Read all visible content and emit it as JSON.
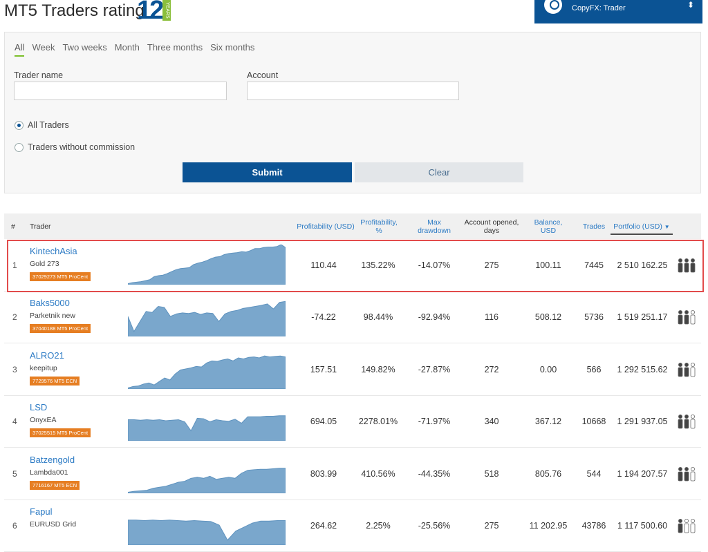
{
  "header": {
    "title": "MT5 Traders rating",
    "years_number": "12",
    "years_tag": "YEARS",
    "account_label": "CopyFX: Trader"
  },
  "filters": {
    "periods": [
      "All",
      "Week",
      "Two weeks",
      "Month",
      "Three months",
      "Six months"
    ],
    "active_period": "All",
    "trader_name_label": "Trader name",
    "trader_name_value": "",
    "account_label": "Account",
    "account_value": "",
    "radio_all": "All Traders",
    "radio_no_commission": "Traders without commission",
    "selected_radio": "All Traders",
    "submit": "Submit",
    "clear": "Clear"
  },
  "table": {
    "columns": {
      "rank": "#",
      "trader": "Trader",
      "profit_usd": "Profitability (USD)",
      "profit_pct_1": "Profitability,",
      "profit_pct_2": "%",
      "max_dd_1": "Max",
      "max_dd_2": "drawdown",
      "opened_1": "Account opened,",
      "opened_2": "days",
      "balance_1": "Balance,",
      "balance_2": "USD",
      "trades": "Trades",
      "portfolio": "Portfolio (USD)"
    },
    "rows": [
      {
        "rank": "1",
        "name": "KintechAsia",
        "strategy": "Gold 273",
        "badge": "37029273 MT5 ProCent",
        "profit_usd": "110.44",
        "profit_pct": "135.22%",
        "max_dd": "-14.07%",
        "opened": "275",
        "balance": "100.11",
        "trades": "7445",
        "portfolio": "2 510 162.25",
        "spark": [
          2,
          4,
          5,
          6,
          8,
          10,
          16,
          18,
          19,
          22,
          26,
          30,
          32,
          33,
          34,
          40,
          43,
          45,
          48,
          52,
          55,
          56,
          60,
          62,
          63,
          64,
          66,
          65,
          68,
          72,
          72,
          74,
          75,
          75,
          76,
          80,
          74
        ]
      },
      {
        "rank": "2",
        "name": "Baks5000",
        "strategy": "Parketnik new",
        "badge": "37040188 MT5 ProCent",
        "profit_usd": "-74.22",
        "profit_pct": "98.44%",
        "max_dd": "-92.94%",
        "opened": "116",
        "balance": "508.12",
        "trades": "5736",
        "portfolio": "1 519 251.17",
        "spark": [
          40,
          10,
          30,
          50,
          48,
          60,
          58,
          40,
          45,
          47,
          46,
          48,
          44,
          47,
          46,
          30,
          45,
          50,
          52,
          56,
          58,
          60,
          62,
          65,
          55,
          68,
          70
        ]
      },
      {
        "rank": "3",
        "name": "ALRO21",
        "strategy": "keepitup",
        "badge": "7729576 MT5 ECN",
        "profit_usd": "157.51",
        "profit_pct": "149.82%",
        "max_dd": "-27.87%",
        "opened": "272",
        "balance": "0.00",
        "trades": "566",
        "portfolio": "1 292 515.62",
        "spark": [
          2,
          5,
          6,
          10,
          12,
          8,
          15,
          22,
          18,
          30,
          38,
          40,
          42,
          45,
          44,
          52,
          56,
          55,
          58,
          60,
          56,
          62,
          60,
          63,
          64,
          62,
          66,
          64,
          65,
          66,
          64
        ]
      },
      {
        "rank": "4",
        "name": "LSD",
        "strategy": "OnyxEA",
        "badge": "37025515 MT5 ProCent",
        "profit_usd": "694.05",
        "profit_pct": "2278.01%",
        "max_dd": "-71.97%",
        "opened": "340",
        "balance": "367.12",
        "trades": "10668",
        "portfolio": "1 291 937.05",
        "spark": [
          42,
          42,
          41,
          42,
          41,
          42,
          40,
          41,
          42,
          38,
          20,
          45,
          44,
          38,
          42,
          40,
          39,
          43,
          35,
          48,
          48,
          48,
          49,
          49,
          50,
          50
        ]
      },
      {
        "rank": "5",
        "name": "Batzengold",
        "strategy": "Lambda001",
        "badge": "7716167 MT5 ECN",
        "profit_usd": "803.99",
        "profit_pct": "410.56%",
        "max_dd": "-44.35%",
        "opened": "518",
        "balance": "805.76",
        "trades": "544",
        "portfolio": "1 194 207.57",
        "spark": [
          2,
          4,
          5,
          6,
          10,
          12,
          14,
          18,
          22,
          24,
          30,
          32,
          30,
          34,
          28,
          30,
          32,
          30,
          40,
          46,
          47,
          48,
          48,
          49,
          50,
          50
        ]
      },
      {
        "rank": "6",
        "name": "Fapul",
        "strategy": "EURUSD Grid",
        "badge": "",
        "profit_usd": "264.62",
        "profit_pct": "2.25%",
        "max_dd": "-25.56%",
        "opened": "275",
        "balance": "11 202.95",
        "trades": "43786",
        "portfolio": "1 117 500.60",
        "spark": [
          50,
          50,
          49,
          50,
          49,
          50,
          49,
          48,
          49,
          48,
          47,
          40,
          10,
          28,
          36,
          44,
          48,
          48,
          49,
          49
        ]
      }
    ]
  },
  "colors": {
    "brand_blue": "#0b5394",
    "link_blue": "#2b7ac4",
    "badge_orange": "#e67e22",
    "chart_fill": "#7aa7cc",
    "highlight_red": "#e24b4b"
  }
}
